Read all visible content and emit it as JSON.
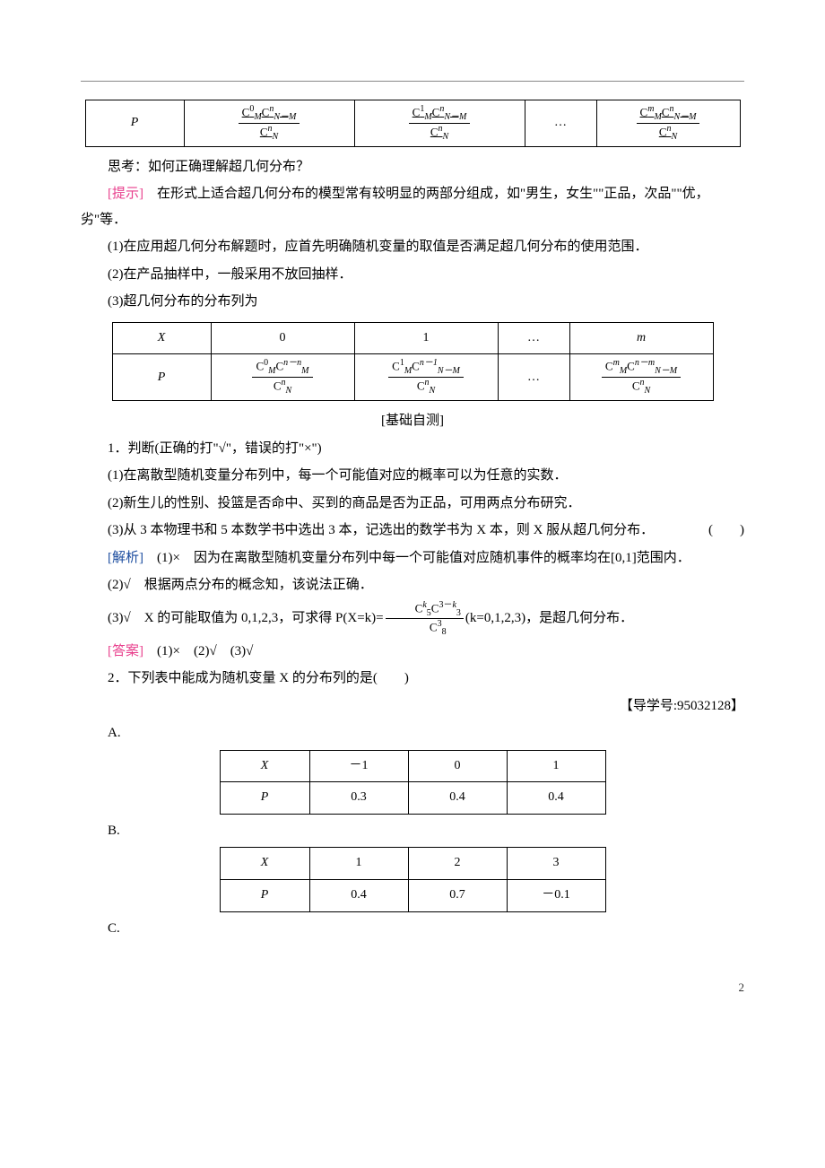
{
  "table1": {
    "r1c1": "P",
    "r1c2_num": "C⁰ₘCⁿ⁻ᴹ",
    "r1c2_den": "Cᴺ",
    "r1c3_num": "C¹ₘCⁿ⁻ᴹ",
    "r1c3_den": "Cᴺ",
    "r1c4": "…",
    "r1c5_num": "CᴹₘCⁿ⁻ᴹ",
    "r1c5_den": "Cᴺ"
  },
  "line1": "思考：如何正确理解超几何分布？",
  "hint_label": "[提示]",
  "hint_text": "　在形式上适合超几何分布的模型常有较明显的两部分组成，如\"男生，女生\"\"正品，次品\"\"优，劣\"等．",
  "p1": "(1)在应用超几何分布解题时，应首先明确随机变量的取值是否满足超几何分布的使用范围．",
  "p2": "(2)在产品抽样中，一般采用不放回抽样．",
  "p3": "(3)超几何分布的分布列为",
  "table2": {
    "h0": "X",
    "h1": "0",
    "h2": "1",
    "h3": "…",
    "h4": "m",
    "r0": "P",
    "c1n": "C⁰ₘCⁿ⁻ᴹⁿ⁻ᴹ",
    "c1d": "Cᴺ",
    "c2n": "C¹ₘCⁿ⁻ᴹ",
    "c2d": "Cᴺ",
    "c3": "…",
    "c4n": "Cᴹₘᴹⁿ⁻ᴹ⁻ᴹ",
    "c4d": "Cᴺ"
  },
  "sec_title": "[基础自测]",
  "q1": "1．判断(正确的打\"√\"，错误的打\"×\")",
  "q1a": "(1)在离散型随机变量分布列中，每一个可能值对应的概率可以为任意的实数．",
  "q1b": "(2)新生儿的性别、投篮是否命中、买到的商品是否为正品，可用两点分布研究．",
  "q1c_pre": "(3)从 3 本物理书和 5 本数学书中选出 3 本，记选出的数学书为 X 本，则 X 服从超几何分布．",
  "q1c_tag": "(　　)",
  "jiexi_label": "[解析]",
  "jiexi_1": "(1)×　因为在离散型随机变量分布列中每一个可能值对应随机事件的概率均在[0,1]范围内．",
  "jiexi_2": "(2)√　根据两点分布的概念知，该说法正确．",
  "jiexi_3_pre": "(3)√　X 的可能取值为 0,1,2,3，可求得 P(X=k)=",
  "jiexi_3_frac_n": "CₖᵏC³⁵⁻ᵏ",
  "jiexi_3_frac_d": "C⁸",
  "jiexi_3_post": "(k=0,1,2,3)，是超几何分布．",
  "ans_label": "[答案]",
  "ans_text": "(1)×　(2)√　(3)√",
  "q2": "2．下列表中能成为随机变量 X 的分布列的是(　　)",
  "guide": "【导学号:95032128】",
  "optA": "A.",
  "optB": "B.",
  "optC": "C.",
  "tblA": {
    "X": "X",
    "h1": "－1",
    "h2": "0",
    "h3": "1",
    "P": "P",
    "v1": "0.3",
    "v2": "0.4",
    "v3": "0.4"
  },
  "tblB": {
    "X": "X",
    "h1": "1",
    "h2": "2",
    "h3": "3",
    "P": "P",
    "v1": "0.4",
    "v2": "0.7",
    "v3": "－0.1"
  },
  "page": "2"
}
